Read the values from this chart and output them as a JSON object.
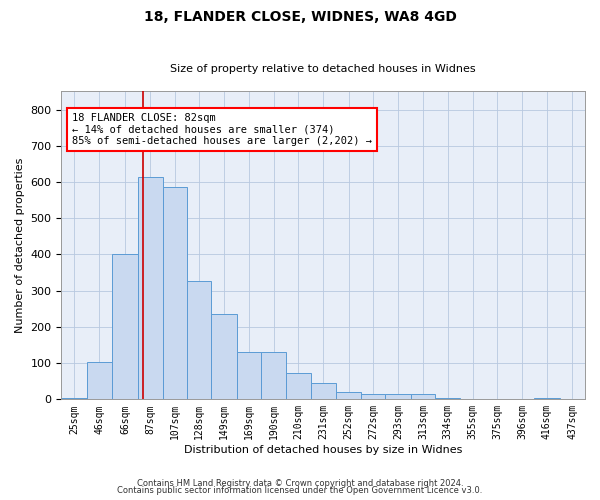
{
  "title_line1": "18, FLANDER CLOSE, WIDNES, WA8 4GD",
  "title_line2": "Size of property relative to detached houses in Widnes",
  "xlabel": "Distribution of detached houses by size in Widnes",
  "ylabel": "Number of detached properties",
  "footer_line1": "Contains HM Land Registry data © Crown copyright and database right 2024.",
  "footer_line2": "Contains public sector information licensed under the Open Government Licence v3.0.",
  "annotation_line1": "18 FLANDER CLOSE: 82sqm",
  "annotation_line2": "← 14% of detached houses are smaller (374)",
  "annotation_line3": "85% of semi-detached houses are larger (2,202) →",
  "bar_color": "#c9d9f0",
  "bar_edge_color": "#5b9bd5",
  "grid_color": "#b8c8e0",
  "bg_color": "#e8eef8",
  "redline_color": "#cc0000",
  "redline_x": 82,
  "categories": [
    "25sqm",
    "46sqm",
    "66sqm",
    "87sqm",
    "107sqm",
    "128sqm",
    "149sqm",
    "169sqm",
    "190sqm",
    "210sqm",
    "231sqm",
    "252sqm",
    "272sqm",
    "293sqm",
    "313sqm",
    "334sqm",
    "355sqm",
    "375sqm",
    "396sqm",
    "416sqm",
    "437sqm"
  ],
  "bin_left": [
    14.5,
    35.5,
    56.5,
    77.5,
    98.5,
    118.5,
    138.5,
    159.5,
    179.5,
    200.5,
    220.5,
    241.5,
    262.5,
    282.5,
    303.5,
    323.5,
    344.5,
    364.5,
    385.5,
    405.5,
    426.5
  ],
  "bin_right": [
    35.5,
    56.5,
    77.5,
    98.5,
    118.5,
    138.5,
    159.5,
    179.5,
    200.5,
    220.5,
    241.5,
    262.5,
    282.5,
    303.5,
    323.5,
    344.5,
    364.5,
    385.5,
    405.5,
    426.5,
    447.5
  ],
  "values": [
    3,
    103,
    400,
    614,
    585,
    328,
    236,
    130,
    130,
    72,
    44,
    20,
    16,
    16,
    16,
    5,
    0,
    0,
    0,
    3,
    0
  ],
  "ylim": [
    0,
    850
  ],
  "yticks": [
    0,
    100,
    200,
    300,
    400,
    500,
    600,
    700,
    800
  ],
  "xlim_left": 14.5,
  "xlim_right": 447.5,
  "title1_fontsize": 10,
  "title2_fontsize": 8,
  "ylabel_fontsize": 8,
  "xlabel_fontsize": 8,
  "ytick_fontsize": 8,
  "xtick_fontsize": 7,
  "annot_fontsize": 7.5,
  "footer_fontsize": 6
}
